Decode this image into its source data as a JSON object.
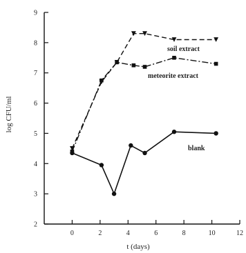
{
  "chart_data": {
    "type": "line",
    "title": "",
    "xlabel": "t (days)",
    "ylabel": "log CFU/ml",
    "xlim": [
      -2,
      12
    ],
    "ylim": [
      2,
      9
    ],
    "xticks": [
      0,
      2,
      4,
      6,
      8,
      10,
      12
    ],
    "yticks": [
      2,
      3,
      4,
      5,
      6,
      7,
      8,
      9
    ],
    "grid": false,
    "legend": "inline labels",
    "series": [
      {
        "name": "soil extract",
        "style": "dashed",
        "marker": "triangle-down",
        "x": [
          0,
          2.1,
          3.2,
          4.4,
          5.2,
          7.3,
          10.3
        ],
        "y": [
          4.5,
          6.7,
          7.35,
          8.3,
          8.3,
          8.1,
          8.1
        ]
      },
      {
        "name": "meteorite extract",
        "style": "dash-dot",
        "marker": "square",
        "x": [
          0,
          2.1,
          3.2,
          4.4,
          5.2,
          7.3,
          10.3
        ],
        "y": [
          4.4,
          6.75,
          7.35,
          7.25,
          7.2,
          7.5,
          7.3
        ]
      },
      {
        "name": "blank",
        "style": "solid",
        "marker": "circle",
        "x": [
          0,
          2.1,
          3.0,
          4.2,
          5.2,
          7.3,
          10.3
        ],
        "y": [
          4.35,
          3.95,
          3.0,
          4.6,
          4.35,
          5.05,
          5.0
        ]
      }
    ],
    "colors": {
      "ink": "#111111"
    }
  }
}
